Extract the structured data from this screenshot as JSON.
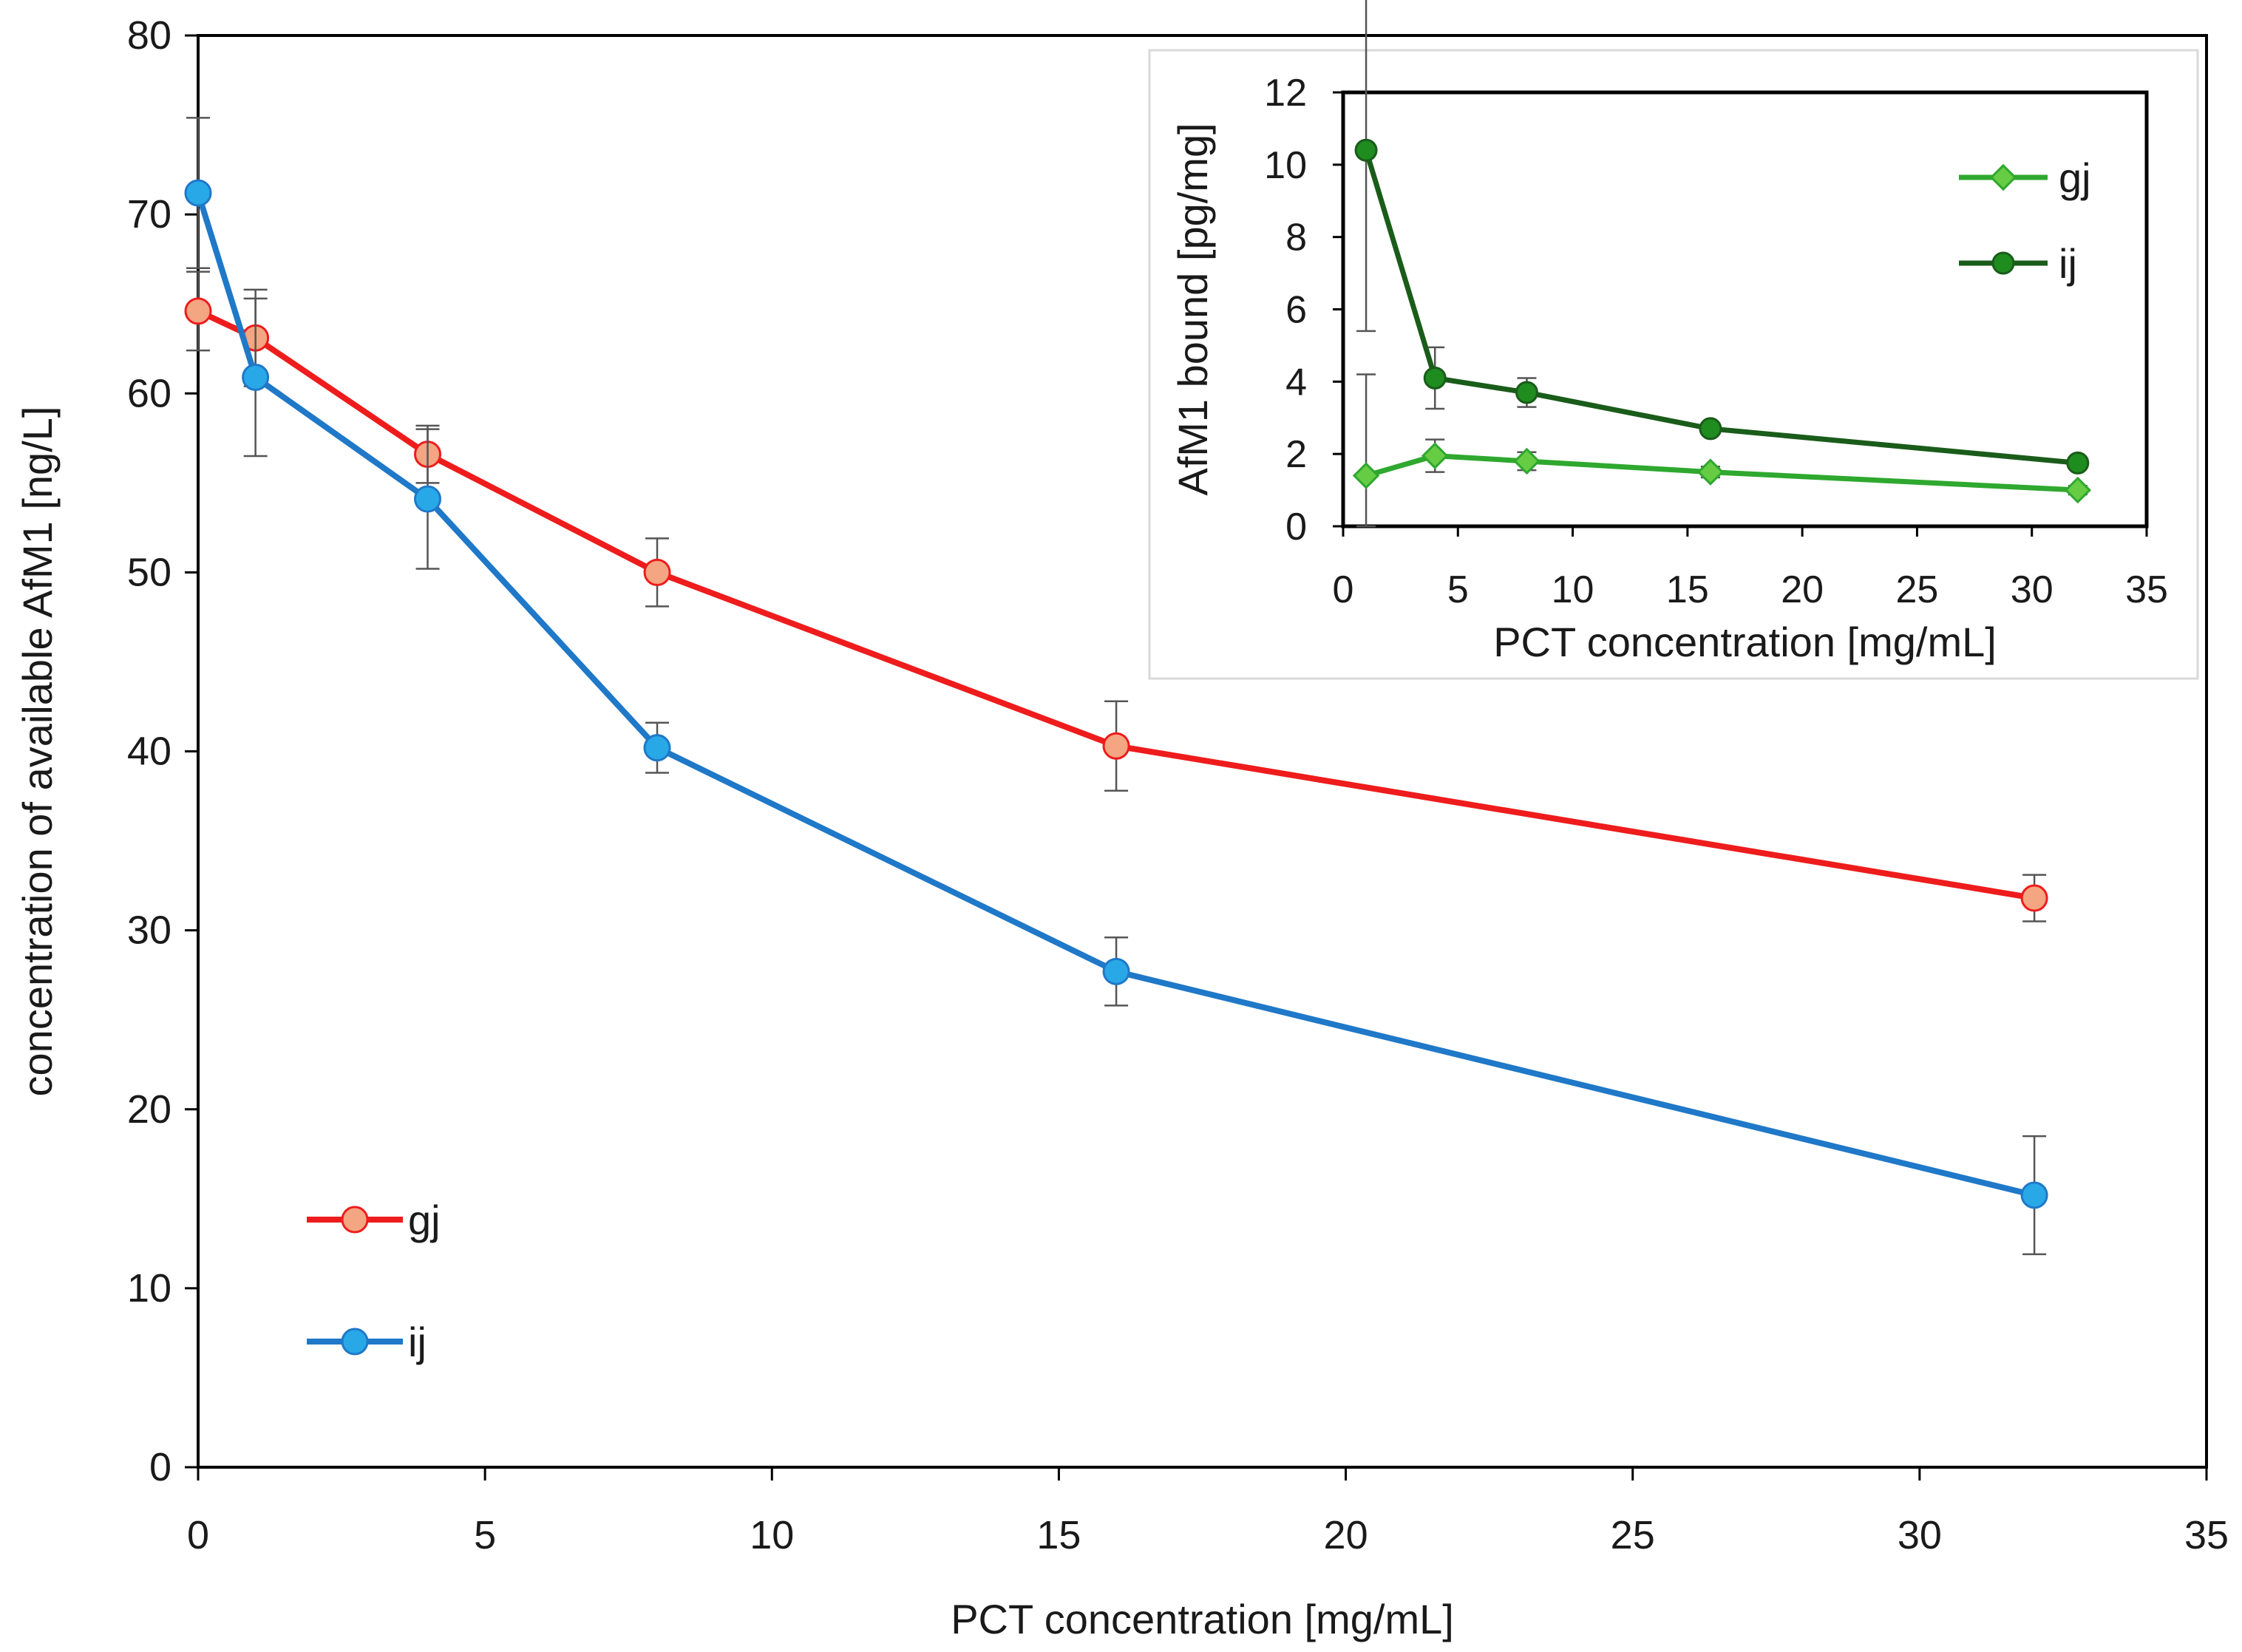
{
  "chart_data": [
    {
      "type": "line",
      "xlabel": "PCT concentration [mg/mL]",
      "ylabel": "concentration of available AfM1 [ng/L]",
      "xlim": [
        0,
        35
      ],
      "ylim": [
        0,
        80
      ],
      "xticks": [
        "0",
        "5",
        "10",
        "15",
        "20",
        "25",
        "30",
        "35"
      ],
      "yticks": [
        "0",
        "10",
        "20",
        "30",
        "40",
        "50",
        "60",
        "70",
        "80"
      ],
      "grid": false,
      "legend": "lower-left",
      "series": [
        {
          "name": "gj",
          "color": "#ee1c1c",
          "marker_fill": "#f4a582",
          "marker": "circle",
          "x": [
            0,
            1,
            4,
            8,
            16,
            32
          ],
          "y": [
            64.6,
            63.1,
            56.6,
            50.0,
            40.3,
            31.8
          ],
          "err": [
            2.2,
            2.7,
            1.6,
            1.9,
            2.5,
            1.3
          ]
        },
        {
          "name": "ij",
          "color": "#1f78c8",
          "marker_fill": "#29a8e8",
          "marker": "circle",
          "x": [
            0,
            1,
            4,
            8,
            16,
            32
          ],
          "y": [
            71.2,
            60.9,
            54.1,
            40.2,
            27.7,
            15.2
          ],
          "err": [
            4.2,
            4.4,
            3.9,
            1.4,
            1.9,
            3.3
          ]
        }
      ]
    },
    {
      "type": "line",
      "xlabel": "PCT concentration [mg/mL]",
      "ylabel": "AfM1 bound [pg/mg]",
      "xlim": [
        0,
        35
      ],
      "ylim": [
        0,
        12
      ],
      "xticks": [
        "0",
        "5",
        "10",
        "15",
        "20",
        "25",
        "30",
        "35"
      ],
      "yticks": [
        "0",
        "2",
        "4",
        "6",
        "8",
        "10",
        "12"
      ],
      "grid": false,
      "legend": "top-right",
      "series": [
        {
          "name": "gj",
          "color": "#2ea82e",
          "marker_fill": "#66cc44",
          "marker": "diamond",
          "x": [
            1,
            4,
            8,
            16,
            32
          ],
          "y": [
            1.4,
            1.95,
            1.8,
            1.5,
            1.0
          ],
          "err": [
            2.8,
            0.45,
            0.25,
            0.15,
            0.12
          ]
        },
        {
          "name": "ij",
          "color": "#1a5c1a",
          "marker_fill": "#1e8c1e",
          "marker": "circle",
          "x": [
            1,
            4,
            8,
            16,
            32
          ],
          "y": [
            10.4,
            4.1,
            3.7,
            2.7,
            1.75
          ],
          "err": [
            5.0,
            0.85,
            0.4,
            0.15,
            0.1
          ]
        }
      ]
    }
  ]
}
